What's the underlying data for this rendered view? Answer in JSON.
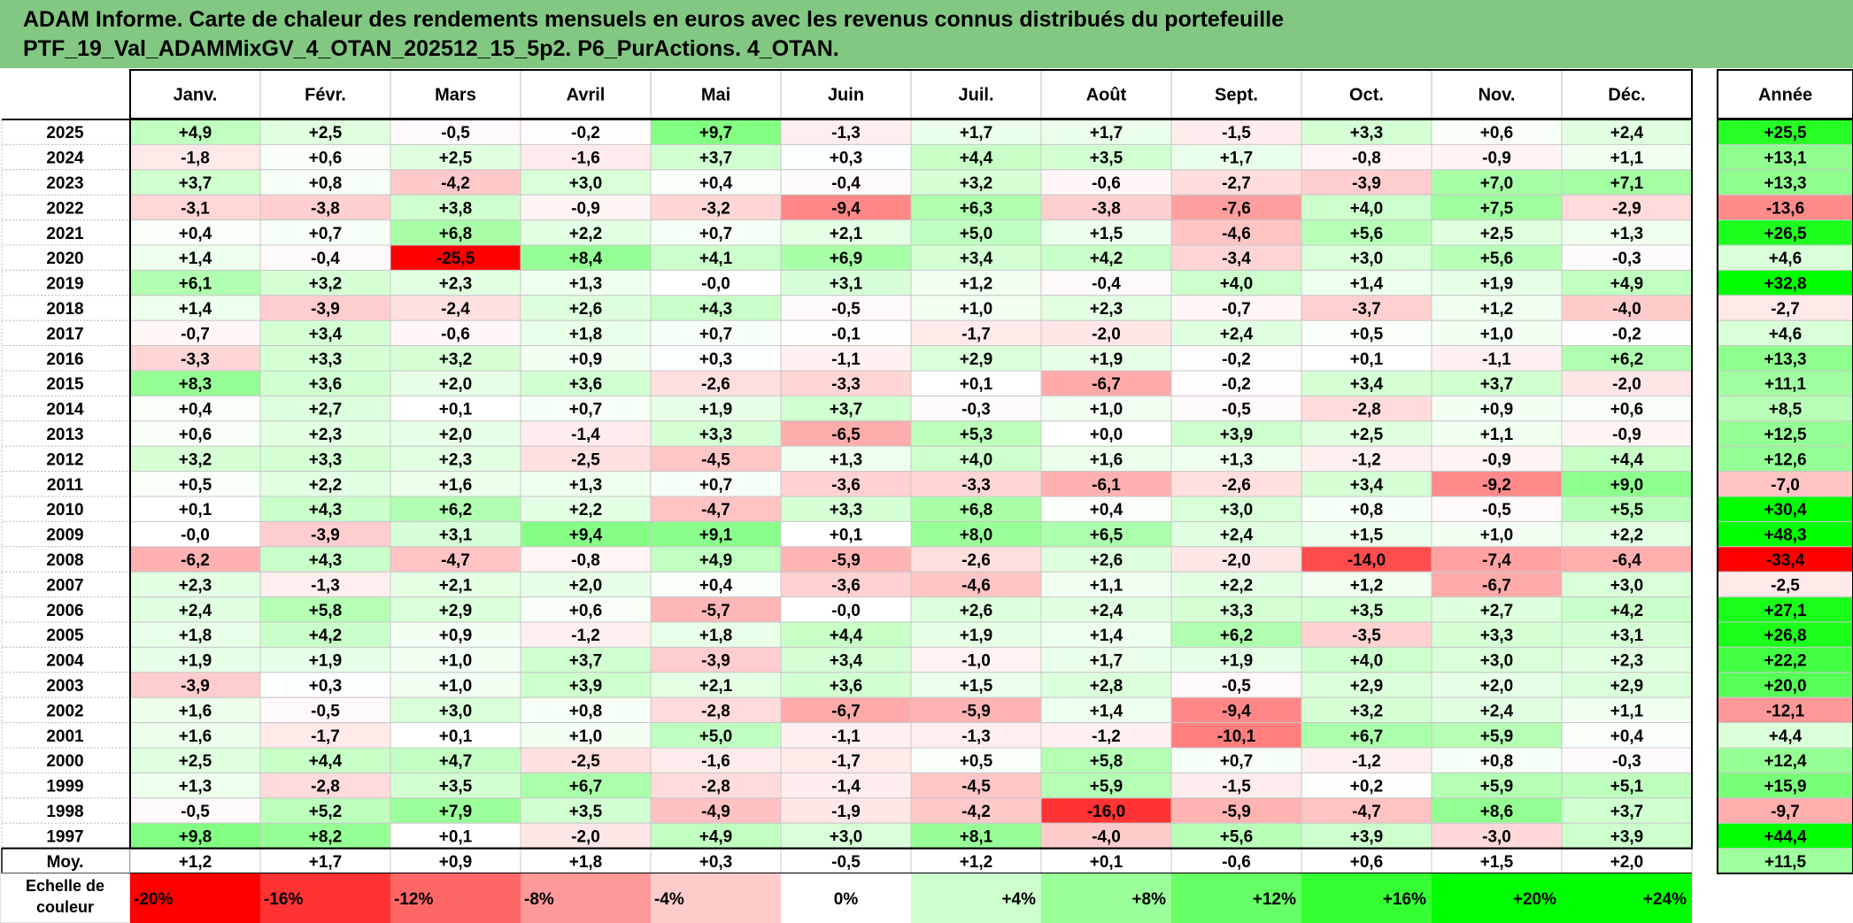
{
  "title_lines": [
    "ADAM Informe. Carte de chaleur des rendements mensuels en euros avec les revenus connus distribués du portefeuille",
    "PTF_19_Val_ADAMMixGV_4_OTAN_202512_15_5p2. P6_PurActions. 4_OTAN."
  ],
  "chart_data": {
    "type": "heatmap",
    "title": "ADAM Informe. Carte de chaleur des rendements mensuels en euros avec les revenus connus distribués du portefeuille PTF_19_Val_ADAMMixGV_4_OTAN_202512_15_5p2. P6_PurActions. 4_OTAN.",
    "months": [
      "Janv.",
      "Févr.",
      "Mars",
      "Avril",
      "Mai",
      "Juin",
      "Juil.",
      "Août",
      "Sept.",
      "Oct.",
      "Nov.",
      "Déc."
    ],
    "year_header": "Année",
    "rows": [
      {
        "year": "2025",
        "values": [
          "+4,9",
          "+2,5",
          "-0,5",
          "-0,2",
          "+9,7",
          "-1,3",
          "+1,7",
          "+1,7",
          "-1,5",
          "+3,3",
          "+0,6",
          "+2,4"
        ],
        "annual": "+25,5"
      },
      {
        "year": "2024",
        "values": [
          "-1,8",
          "+0,6",
          "+2,5",
          "-1,6",
          "+3,7",
          "+0,3",
          "+4,4",
          "+3,5",
          "+1,7",
          "-0,8",
          "-0,9",
          "+1,1"
        ],
        "annual": "+13,1"
      },
      {
        "year": "2023",
        "values": [
          "+3,7",
          "+0,8",
          "-4,2",
          "+3,0",
          "+0,4",
          "-0,4",
          "+3,2",
          "-0,6",
          "-2,7",
          "-3,9",
          "+7,0",
          "+7,1"
        ],
        "annual": "+13,3"
      },
      {
        "year": "2022",
        "values": [
          "-3,1",
          "-3,8",
          "+3,8",
          "-0,9",
          "-3,2",
          "-9,4",
          "+6,3",
          "-3,8",
          "-7,6",
          "+4,0",
          "+7,5",
          "-2,9"
        ],
        "annual": "-13,6"
      },
      {
        "year": "2021",
        "values": [
          "+0,4",
          "+0,7",
          "+6,8",
          "+2,2",
          "+0,7",
          "+2,1",
          "+5,0",
          "+1,5",
          "-4,6",
          "+5,6",
          "+2,5",
          "+1,3"
        ],
        "annual": "+26,5"
      },
      {
        "year": "2020",
        "values": [
          "+1,4",
          "-0,4",
          "-25,5",
          "+8,4",
          "+4,1",
          "+6,9",
          "+3,4",
          "+4,2",
          "-3,4",
          "+3,0",
          "+5,6",
          "-0,3"
        ],
        "annual": "+4,6"
      },
      {
        "year": "2019",
        "values": [
          "+6,1",
          "+3,2",
          "+2,3",
          "+1,3",
          "-0,0",
          "+3,1",
          "+1,2",
          "-0,4",
          "+4,0",
          "+1,4",
          "+1,9",
          "+4,9"
        ],
        "annual": "+32,8"
      },
      {
        "year": "2018",
        "values": [
          "+1,4",
          "-3,9",
          "-2,4",
          "+2,6",
          "+4,3",
          "-0,5",
          "+1,0",
          "+2,3",
          "-0,7",
          "-3,7",
          "+1,2",
          "-4,0"
        ],
        "annual": "-2,7"
      },
      {
        "year": "2017",
        "values": [
          "-0,7",
          "+3,4",
          "-0,6",
          "+1,8",
          "+0,7",
          "-0,1",
          "-1,7",
          "-2,0",
          "+2,4",
          "+0,5",
          "+1,0",
          "-0,2"
        ],
        "annual": "+4,6"
      },
      {
        "year": "2016",
        "values": [
          "-3,3",
          "+3,3",
          "+3,2",
          "+0,9",
          "+0,3",
          "-1,1",
          "+2,9",
          "+1,9",
          "-0,2",
          "+0,1",
          "-1,1",
          "+6,2"
        ],
        "annual": "+13,3"
      },
      {
        "year": "2015",
        "values": [
          "+8,3",
          "+3,6",
          "+2,0",
          "+3,6",
          "-2,6",
          "-3,3",
          "+0,1",
          "-6,7",
          "-0,2",
          "+3,4",
          "+3,7",
          "-2,0"
        ],
        "annual": "+11,1"
      },
      {
        "year": "2014",
        "values": [
          "+0,4",
          "+2,7",
          "+0,1",
          "+0,7",
          "+1,9",
          "+3,7",
          "-0,3",
          "+1,0",
          "-0,5",
          "-2,8",
          "+0,9",
          "+0,6"
        ],
        "annual": "+8,5"
      },
      {
        "year": "2013",
        "values": [
          "+0,6",
          "+2,3",
          "+2,0",
          "-1,4",
          "+3,3",
          "-6,5",
          "+5,3",
          "+0,0",
          "+3,9",
          "+2,5",
          "+1,1",
          "-0,9"
        ],
        "annual": "+12,5"
      },
      {
        "year": "2012",
        "values": [
          "+3,2",
          "+3,3",
          "+2,3",
          "-2,5",
          "-4,5",
          "+1,3",
          "+4,0",
          "+1,6",
          "+1,3",
          "-1,2",
          "-0,9",
          "+4,4"
        ],
        "annual": "+12,6"
      },
      {
        "year": "2011",
        "values": [
          "+0,5",
          "+2,2",
          "+1,6",
          "+1,3",
          "+0,7",
          "-3,6",
          "-3,3",
          "-6,1",
          "-2,6",
          "+3,4",
          "-9,2",
          "+9,0"
        ],
        "annual": "-7,0"
      },
      {
        "year": "2010",
        "values": [
          "+0,1",
          "+4,3",
          "+6,2",
          "+2,2",
          "-4,7",
          "+3,3",
          "+6,8",
          "+0,4",
          "+3,0",
          "+0,8",
          "-0,5",
          "+5,5"
        ],
        "annual": "+30,4"
      },
      {
        "year": "2009",
        "values": [
          "-0,0",
          "-3,9",
          "+3,1",
          "+9,4",
          "+9,1",
          "+0,1",
          "+8,0",
          "+6,5",
          "+2,4",
          "+1,5",
          "+1,0",
          "+2,2"
        ],
        "annual": "+48,3"
      },
      {
        "year": "2008",
        "values": [
          "-6,2",
          "+4,3",
          "-4,7",
          "-0,8",
          "+4,9",
          "-5,9",
          "-2,6",
          "+2,6",
          "-2,0",
          "-14,0",
          "-7,4",
          "-6,4"
        ],
        "annual": "-33,4"
      },
      {
        "year": "2007",
        "values": [
          "+2,3",
          "-1,3",
          "+2,1",
          "+2,0",
          "+0,4",
          "-3,6",
          "-4,6",
          "+1,1",
          "+2,2",
          "+1,2",
          "-6,7",
          "+3,0"
        ],
        "annual": "-2,5"
      },
      {
        "year": "2006",
        "values": [
          "+2,4",
          "+5,8",
          "+2,9",
          "+0,6",
          "-5,7",
          "-0,0",
          "+2,6",
          "+2,4",
          "+3,3",
          "+3,5",
          "+2,7",
          "+4,2"
        ],
        "annual": "+27,1"
      },
      {
        "year": "2005",
        "values": [
          "+1,8",
          "+4,2",
          "+0,9",
          "-1,2",
          "+1,8",
          "+4,4",
          "+1,9",
          "+1,4",
          "+6,2",
          "-3,5",
          "+3,3",
          "+3,1"
        ],
        "annual": "+26,8"
      },
      {
        "year": "2004",
        "values": [
          "+1,9",
          "+1,9",
          "+1,0",
          "+3,7",
          "-3,9",
          "+3,4",
          "-1,0",
          "+1,7",
          "+1,9",
          "+4,0",
          "+3,0",
          "+2,3"
        ],
        "annual": "+22,2"
      },
      {
        "year": "2003",
        "values": [
          "-3,9",
          "+0,3",
          "+1,0",
          "+3,9",
          "+2,1",
          "+3,6",
          "+1,5",
          "+2,8",
          "-0,5",
          "+2,9",
          "+2,0",
          "+2,9"
        ],
        "annual": "+20,0"
      },
      {
        "year": "2002",
        "values": [
          "+1,6",
          "-0,5",
          "+3,0",
          "+0,8",
          "-2,8",
          "-6,7",
          "-5,9",
          "+1,4",
          "-9,4",
          "+3,2",
          "+2,4",
          "+1,1"
        ],
        "annual": "-12,1"
      },
      {
        "year": "2001",
        "values": [
          "+1,6",
          "-1,7",
          "+0,1",
          "+1,0",
          "+5,0",
          "-1,1",
          "-1,3",
          "-1,2",
          "-10,1",
          "+6,7",
          "+5,9",
          "+0,4"
        ],
        "annual": "+4,4"
      },
      {
        "year": "2000",
        "values": [
          "+2,5",
          "+4,4",
          "+4,7",
          "-2,5",
          "-1,6",
          "-1,7",
          "+0,5",
          "+5,8",
          "+0,7",
          "-1,2",
          "+0,8",
          "-0,3"
        ],
        "annual": "+12,4"
      },
      {
        "year": "1999",
        "values": [
          "+1,3",
          "-2,8",
          "+3,5",
          "+6,7",
          "-2,8",
          "-1,4",
          "-4,5",
          "+5,9",
          "-1,5",
          "+0,2",
          "+5,9",
          "+5,1"
        ],
        "annual": "+15,9"
      },
      {
        "year": "1998",
        "values": [
          "-0,5",
          "+5,2",
          "+7,9",
          "+3,5",
          "-4,9",
          "-1,9",
          "-4,2",
          "-16,0",
          "-5,9",
          "-4,7",
          "+8,6",
          "+3,7"
        ],
        "annual": "-9,7"
      },
      {
        "year": "1997",
        "values": [
          "+9,8",
          "+8,2",
          "+0,1",
          "-2,0",
          "+4,9",
          "+3,0",
          "+8,1",
          "-4,0",
          "+5,6",
          "+3,9",
          "-3,0",
          "+3,9"
        ],
        "annual": "+44,4"
      }
    ],
    "average": {
      "label": "Moy.",
      "values": [
        "+1,2",
        "+1,7",
        "+0,9",
        "+1,8",
        "+0,3",
        "-0,5",
        "+1,2",
        "+0,1",
        "-0,6",
        "+0,6",
        "+1,5",
        "+2,0"
      ],
      "annual": "+11,5"
    },
    "scale": {
      "label_lines": [
        "Echelle de",
        "couleur"
      ],
      "ticks": [
        "-20%",
        "-16%",
        "-12%",
        "-8%",
        "-4%",
        "0%",
        "+4%",
        "+8%",
        "+12%",
        "+16%",
        "+20%",
        "+24%"
      ],
      "colors": [
        "#ff0000",
        "#ff3333",
        "#ff6666",
        "#ff9999",
        "#ffcccc",
        "#ffffff",
        "#ccffcc",
        "#99ff99",
        "#66ff66",
        "#33ff33",
        "#00ff00",
        "#00ff00"
      ]
    },
    "monthly_color_range": [
      -20,
      20
    ],
    "annual_color_range": [
      -33.4,
      30
    ]
  }
}
